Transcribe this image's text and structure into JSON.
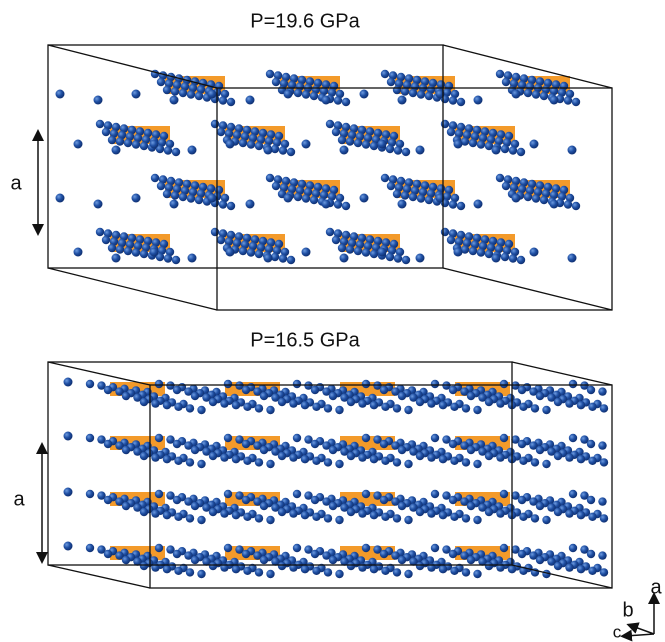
{
  "panels": [
    {
      "title": "P=19.6 GPa",
      "lattice_label": "a"
    },
    {
      "title": "P=16.5 GPa",
      "lattice_label": "a"
    }
  ],
  "axes": {
    "a": "a",
    "b": "b",
    "c": "c"
  }
}
